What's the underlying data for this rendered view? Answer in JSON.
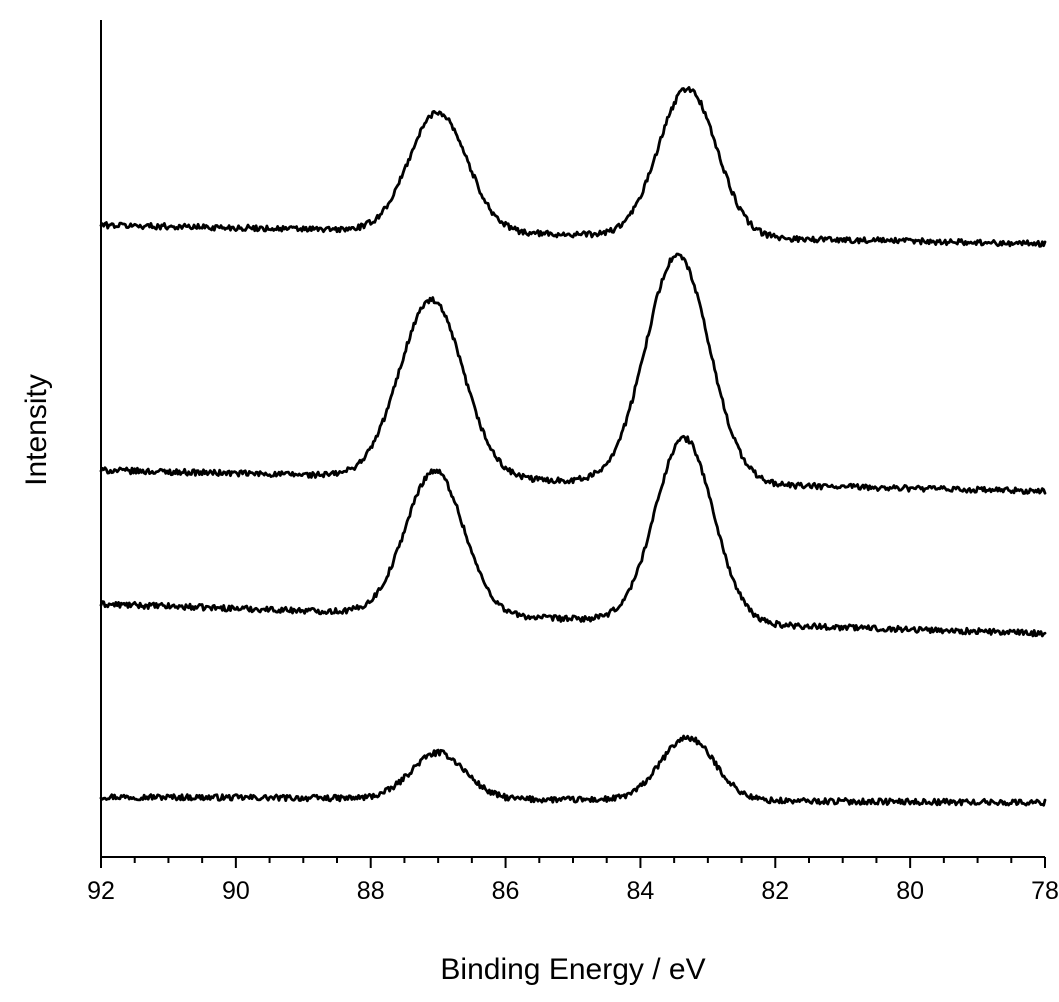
{
  "chart_data": {
    "type": "line",
    "title": "",
    "xlabel": "Binding Energy / eV",
    "ylabel": "Intensity",
    "xlim": [
      92,
      78
    ],
    "x_reversed": true,
    "x_major_ticks": [
      92,
      90,
      88,
      86,
      84,
      82,
      80,
      78
    ],
    "x_tick_labels": [
      "92",
      "90",
      "88",
      "86",
      "84",
      "82",
      "80",
      "78"
    ],
    "x_minor_step": 0.5,
    "y_ticks_shown": false,
    "grid": false,
    "legend": "none",
    "stacked_offset_traces": true,
    "color": "#000000",
    "series": [
      {
        "baseline": 0.72,
        "baseline_slope": -0.005,
        "peaks": [
          {
            "x": 83.3,
            "height": 0.75,
            "width": 0.4
          },
          {
            "x": 87.0,
            "height": 0.55,
            "width": 0.4
          }
        ]
      },
      {
        "baseline": 3.02,
        "baseline_slope": -0.025,
        "peaks": [
          {
            "x": 83.35,
            "height": 2.2,
            "width": 0.43
          },
          {
            "x": 87.05,
            "height": 1.72,
            "width": 0.43
          }
        ]
      },
      {
        "baseline": 4.62,
        "baseline_slope": -0.018,
        "peaks": [
          {
            "x": 83.45,
            "height": 2.72,
            "width": 0.47
          },
          {
            "x": 87.1,
            "height": 2.12,
            "width": 0.47
          }
        ]
      },
      {
        "baseline": 7.55,
        "baseline_slope": -0.016,
        "peaks": [
          {
            "x": 83.3,
            "height": 1.77,
            "width": 0.43
          },
          {
            "x": 87.0,
            "height": 1.43,
            "width": 0.43
          }
        ]
      }
    ],
    "ylim": [
      0,
      10
    ]
  }
}
